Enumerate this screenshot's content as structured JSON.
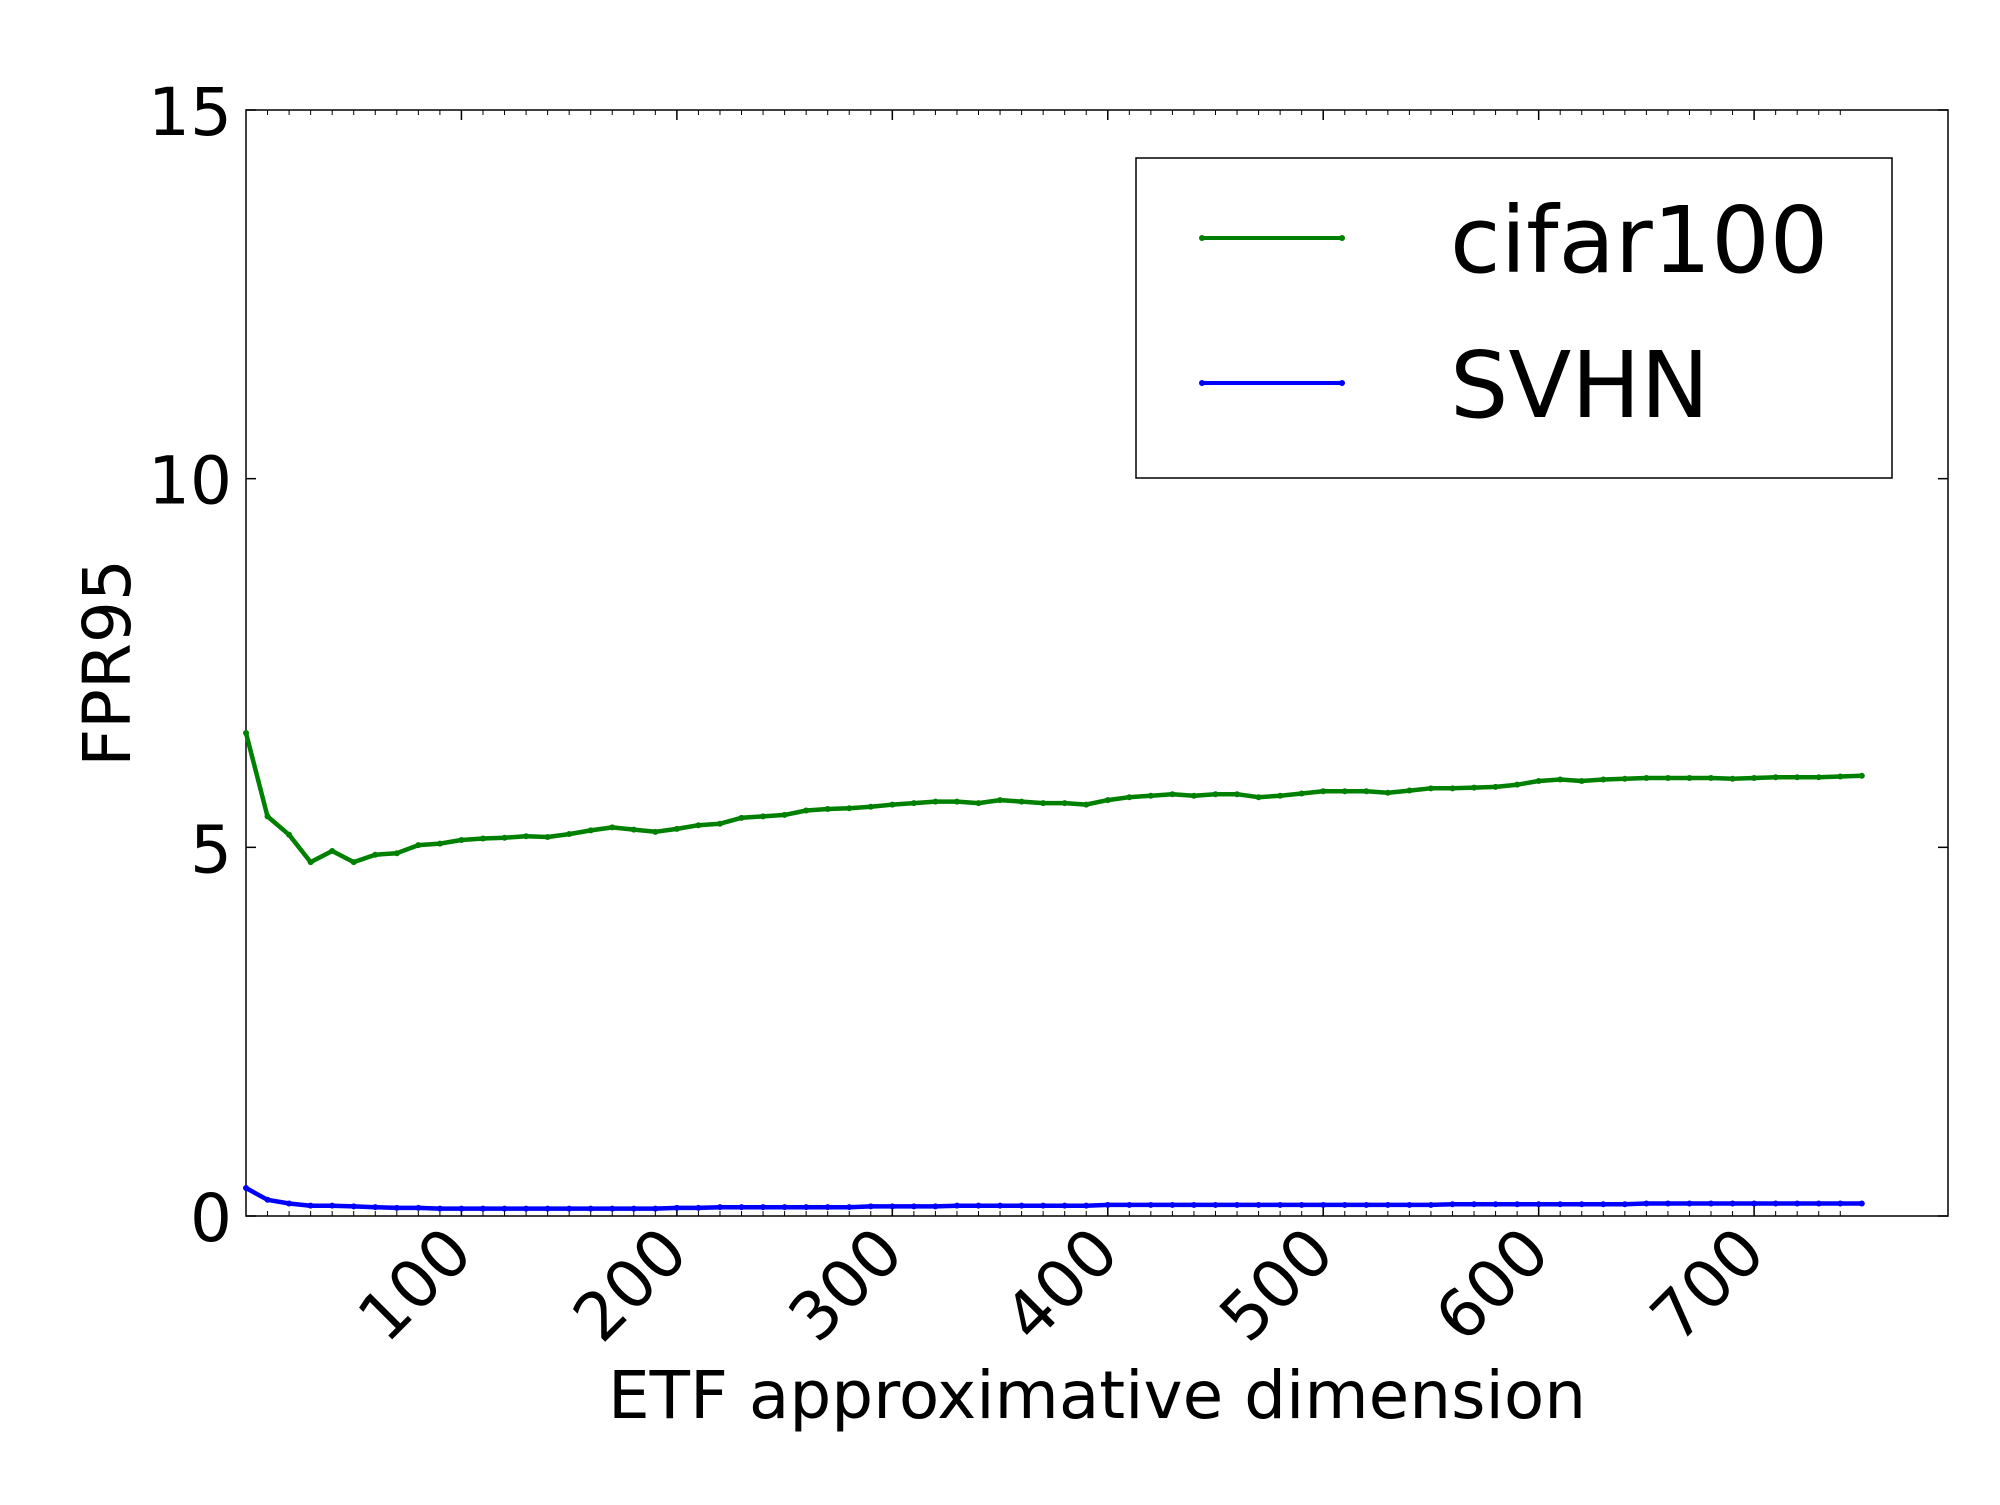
{
  "chart_data": {
    "type": "line",
    "xlabel": "ETF approximative dimension",
    "ylabel": "FPR95",
    "xlim": [
      0,
      790
    ],
    "ylim": [
      0,
      15
    ],
    "xticks": [
      100,
      200,
      300,
      400,
      500,
      600,
      700
    ],
    "yticks": [
      0,
      5,
      10,
      15
    ],
    "legend_position": "top-right",
    "grid": false,
    "series": [
      {
        "name": "cifar100",
        "color": "#008000",
        "x": [
          0,
          10,
          20,
          30,
          40,
          50,
          60,
          70,
          80,
          90,
          100,
          110,
          120,
          130,
          140,
          150,
          160,
          170,
          180,
          190,
          200,
          210,
          220,
          230,
          240,
          250,
          260,
          270,
          280,
          290,
          300,
          310,
          320,
          330,
          340,
          350,
          360,
          370,
          380,
          390,
          400,
          410,
          420,
          430,
          440,
          450,
          460,
          470,
          480,
          490,
          500,
          510,
          520,
          530,
          540,
          550,
          560,
          570,
          580,
          590,
          600,
          610,
          620,
          630,
          640,
          650,
          660,
          670,
          680,
          690,
          700,
          710,
          720,
          730,
          740,
          750
        ],
        "values": [
          6.55,
          5.42,
          5.17,
          4.8,
          4.95,
          4.8,
          4.9,
          4.92,
          5.03,
          5.05,
          5.1,
          5.12,
          5.13,
          5.15,
          5.14,
          5.18,
          5.23,
          5.27,
          5.24,
          5.21,
          5.25,
          5.3,
          5.32,
          5.4,
          5.42,
          5.44,
          5.5,
          5.52,
          5.53,
          5.55,
          5.58,
          5.6,
          5.62,
          5.62,
          5.6,
          5.64,
          5.62,
          5.6,
          5.6,
          5.58,
          5.64,
          5.68,
          5.7,
          5.72,
          5.7,
          5.72,
          5.72,
          5.68,
          5.7,
          5.73,
          5.76,
          5.76,
          5.76,
          5.74,
          5.77,
          5.8,
          5.8,
          5.81,
          5.82,
          5.85,
          5.9,
          5.92,
          5.9,
          5.92,
          5.93,
          5.94,
          5.94,
          5.94,
          5.94,
          5.93,
          5.94,
          5.95,
          5.95,
          5.95,
          5.96,
          5.97
        ]
      },
      {
        "name": "SVHN",
        "color": "#0000ff",
        "x": [
          0,
          10,
          20,
          30,
          40,
          50,
          60,
          70,
          80,
          90,
          100,
          110,
          120,
          130,
          140,
          150,
          160,
          170,
          180,
          190,
          200,
          210,
          220,
          230,
          240,
          250,
          260,
          270,
          280,
          290,
          300,
          310,
          320,
          330,
          340,
          350,
          360,
          370,
          380,
          390,
          400,
          410,
          420,
          430,
          440,
          450,
          460,
          470,
          480,
          490,
          500,
          510,
          520,
          530,
          540,
          550,
          560,
          570,
          580,
          590,
          600,
          610,
          620,
          630,
          640,
          650,
          660,
          670,
          680,
          690,
          700,
          710,
          720,
          730,
          740,
          750
        ],
        "values": [
          0.38,
          0.22,
          0.17,
          0.14,
          0.14,
          0.13,
          0.12,
          0.11,
          0.11,
          0.1,
          0.1,
          0.1,
          0.1,
          0.1,
          0.1,
          0.1,
          0.1,
          0.1,
          0.1,
          0.1,
          0.11,
          0.11,
          0.12,
          0.12,
          0.12,
          0.12,
          0.12,
          0.12,
          0.12,
          0.13,
          0.13,
          0.13,
          0.13,
          0.14,
          0.14,
          0.14,
          0.14,
          0.14,
          0.14,
          0.14,
          0.15,
          0.15,
          0.15,
          0.15,
          0.15,
          0.15,
          0.15,
          0.15,
          0.15,
          0.15,
          0.15,
          0.15,
          0.15,
          0.15,
          0.15,
          0.15,
          0.16,
          0.16,
          0.16,
          0.16,
          0.16,
          0.16,
          0.16,
          0.16,
          0.16,
          0.17,
          0.17,
          0.17,
          0.17,
          0.17,
          0.17,
          0.17,
          0.17,
          0.17,
          0.17,
          0.17
        ]
      }
    ]
  }
}
